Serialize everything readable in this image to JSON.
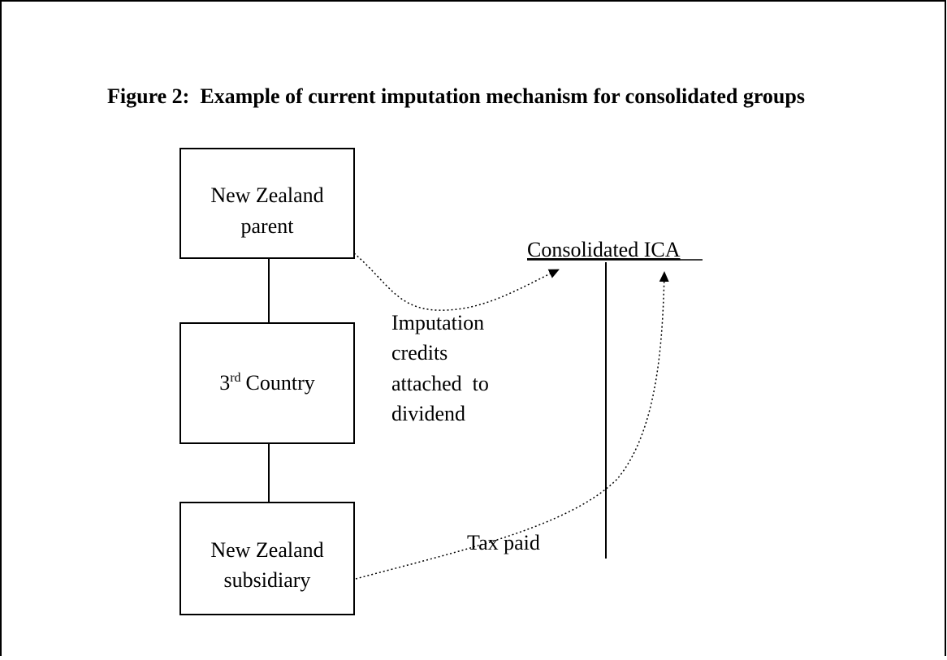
{
  "title": "Figure 2:  Example of current imputation mechanism for consolidated groups",
  "nodes": [
    {
      "lines": [
        "New Zealand",
        "parent"
      ]
    },
    {
      "number": "3",
      "suffix": "rd",
      "text": "Country"
    },
    {
      "lines": [
        "New Zealand",
        "subsidiary"
      ]
    }
  ],
  "account": "Consolidated ICA",
  "annotations": {
    "imputation": [
      "Imputation",
      "credits",
      "attached  to",
      "dividend"
    ],
    "tax": "Tax paid"
  }
}
